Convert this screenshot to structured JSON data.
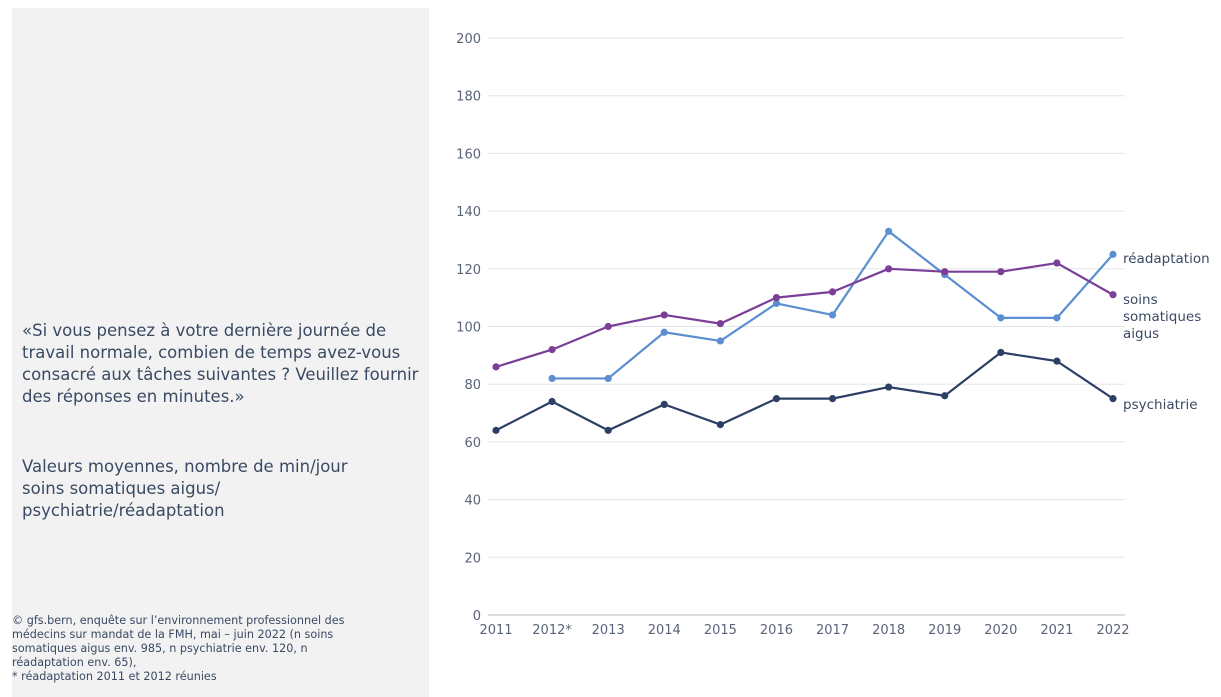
{
  "left_panel": {
    "question": "«Si vous pensez à votre dernière journée de travail normale, combien de temps avez-vous consacré aux tâches suivantes ? Veuillez fournir des réponses en minutes.»",
    "subtitle_line1": "Valeurs moyennes, nombre de min/jour",
    "subtitle_line2": "soins somatiques aigus/",
    "subtitle_line3": "psychiatrie/réadaptation",
    "source_line1": "© gfs.bern, enquête sur l’environnement professionnel des",
    "source_line2": "médecins sur mandat de la FMH, mai – juin 2022 (n soins",
    "source_line3": "somatiques aigus env. 985, n psychiatrie env. 120, n",
    "source_line4": "réadaptation env. 65),",
    "source_line5": "* réadaptation 2011 et 2012 réunies"
  },
  "chart_data": {
    "type": "line",
    "categories": [
      "2011",
      "2012*",
      "2013",
      "2014",
      "2015",
      "2016",
      "2017",
      "2018",
      "2019",
      "2020",
      "2021",
      "2022"
    ],
    "ylim": [
      0,
      200
    ],
    "yticks": [
      0,
      20,
      40,
      60,
      80,
      100,
      120,
      140,
      160,
      180,
      200
    ],
    "grid": true,
    "series": [
      {
        "name": "réadaptation",
        "label_lines": [
          "réadaptation"
        ],
        "color": "#5b8fcf",
        "values": [
          null,
          82,
          82,
          98,
          95,
          108,
          104,
          133,
          118,
          103,
          103,
          125
        ]
      },
      {
        "name": "soins somatiques aigus",
        "label_lines": [
          "soins",
          "somatiques",
          "aigus"
        ],
        "color": "#7b3f98",
        "values": [
          86,
          92,
          100,
          104,
          101,
          110,
          112,
          120,
          119,
          119,
          122,
          111
        ]
      },
      {
        "name": "psychiatrie",
        "label_lines": [
          "psychiatrie"
        ],
        "color": "#2e3f66",
        "values": [
          64,
          74,
          64,
          73,
          66,
          75,
          75,
          79,
          76,
          91,
          88,
          75
        ]
      }
    ]
  }
}
